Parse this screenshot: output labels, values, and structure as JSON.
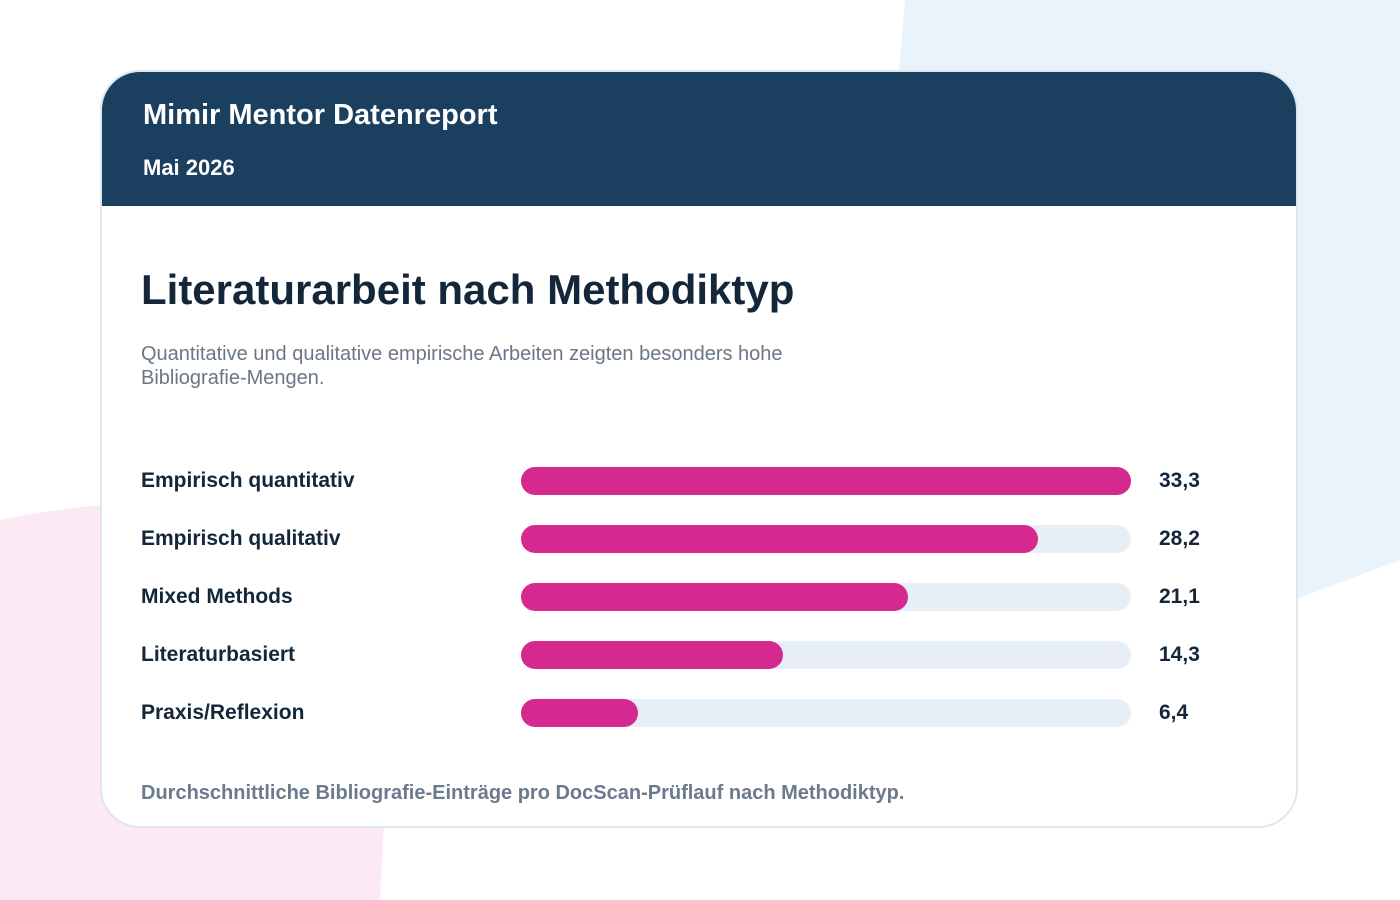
{
  "header": {
    "title": "Mimir Mentor Datenreport",
    "subtitle": "Mai 2026"
  },
  "chart_data": {
    "type": "bar",
    "orientation": "horizontal",
    "title": "Literaturarbeit nach Methodiktyp",
    "subtitle": "Quantitative und qualitative empirische Arbeiten zeigten besonders hohe Bibliografie-Mengen.",
    "categories": [
      "Empirisch quantitativ",
      "Empirisch qualitativ",
      "Mixed Methods",
      "Literaturbasiert",
      "Praxis/Reflexion"
    ],
    "values": [
      33.3,
      28.2,
      21.1,
      14.3,
      6.4
    ],
    "value_labels": [
      "33,3",
      "28,2",
      "21,1",
      "14,3",
      "6,4"
    ],
    "xlim": [
      0,
      33.3
    ],
    "color": "#d6298f",
    "track_color": "#e8eef6",
    "caption": "Durchschnittliche Bibliografie-Einträge pro DocScan-Prüflauf nach Methodiktyp."
  }
}
